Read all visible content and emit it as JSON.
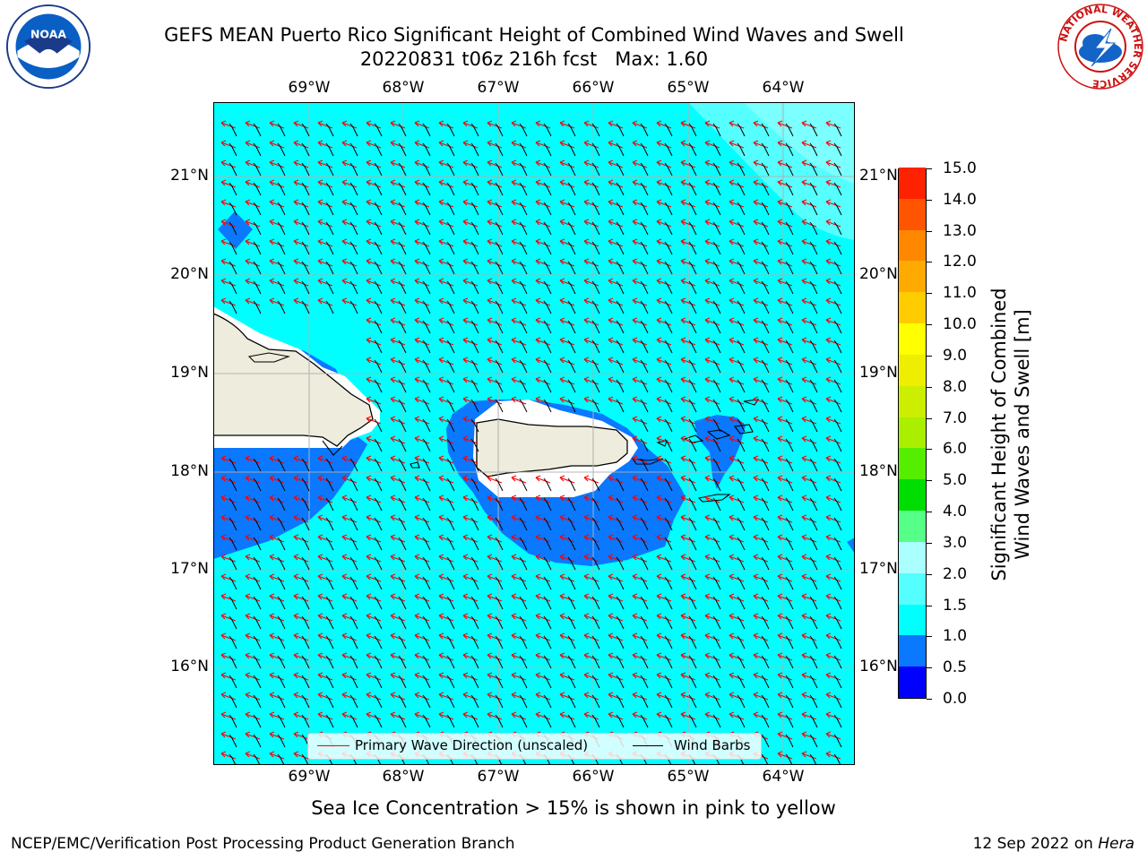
{
  "header": {
    "title_line1": "GEFS MEAN Puerto Rico Significant Height of Combined Wind Waves and Swell",
    "title_line2": "20220831 t06z 216h fcst   Max: 1.60"
  },
  "logos": {
    "noaa_text": "NOAA",
    "nws_ring_text": "NATIONAL WEATHER SERVICE"
  },
  "axes": {
    "lon_labels": [
      "69°W",
      "68°W",
      "67°W",
      "66°W",
      "65°W",
      "64°W"
    ],
    "lat_labels": [
      "21°N",
      "20°N",
      "19°N",
      "18°N",
      "17°N",
      "16°N"
    ]
  },
  "legend": {
    "wave_label": "Primary Wave Direction (unscaled)",
    "barb_label": "Wind Barbs"
  },
  "colorbar": {
    "title_line1": "Significant Height of Combined",
    "title_line2": "Wind Waves and Swell [m]",
    "ticks": [
      "0.0",
      "0.5",
      "1.0",
      "1.5",
      "2.0",
      "3.0",
      "4.0",
      "5.0",
      "6.0",
      "7.0",
      "8.0",
      "9.0",
      "10.0",
      "11.0",
      "12.0",
      "13.0",
      "14.0",
      "15.0"
    ],
    "colors": [
      "#0000ff",
      "#0a78ff",
      "#00ffff",
      "#55ffff",
      "#aaffff",
      "#55ff88",
      "#00dd00",
      "#55ee00",
      "#aaee00",
      "#ccee00",
      "#eeee00",
      "#ffff00",
      "#ffcc00",
      "#ffaa00",
      "#ff8800",
      "#ff5500",
      "#ff2200",
      "#ff0000"
    ]
  },
  "map": {
    "ocean_color": "#00ffff",
    "low_wave_color": "#0a78ff",
    "higher_wave_color": "#55ffff",
    "land_color": "#eeecdc",
    "arrow_color": "#ff0000",
    "barb_color": "#000000",
    "lon_range": [
      -70.0,
      -63.26
    ],
    "lat_range": [
      15.0,
      21.75
    ]
  },
  "footer": {
    "note": "Sea Ice Concentration > 15% is shown in pink to yellow",
    "left": "NCEP/EMC/Verification Post Processing Product Generation Branch",
    "right_date": "12 Sep 2022 on ",
    "right_host": "Hera"
  }
}
